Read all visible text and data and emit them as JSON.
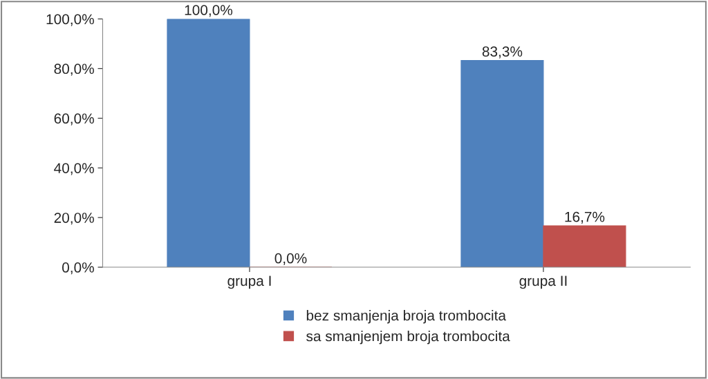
{
  "chart_data": {
    "type": "bar",
    "categories": [
      "grupa I",
      "grupa II"
    ],
    "series": [
      {
        "name": "bez smanjenja broja trombocita",
        "color": "#4f81bd",
        "values": [
          100.0,
          83.3
        ],
        "value_labels": [
          "100,0%",
          "83,3%"
        ]
      },
      {
        "name": "sa smanjenjem broja trombocita",
        "color": "#c0504d",
        "values": [
          0.0,
          16.7
        ],
        "value_labels": [
          "0,0%",
          "16,7%"
        ]
      }
    ],
    "ylim": [
      0,
      100
    ],
    "yticks": [
      {
        "value": 0,
        "label": "0,0%"
      },
      {
        "value": 20,
        "label": "20,0%"
      },
      {
        "value": 40,
        "label": "40,0%"
      },
      {
        "value": 60,
        "label": "60,0%"
      },
      {
        "value": 80,
        "label": "80,0%"
      },
      {
        "value": 100,
        "label": "100,0%"
      }
    ],
    "grid": false,
    "legend": "bottom"
  }
}
